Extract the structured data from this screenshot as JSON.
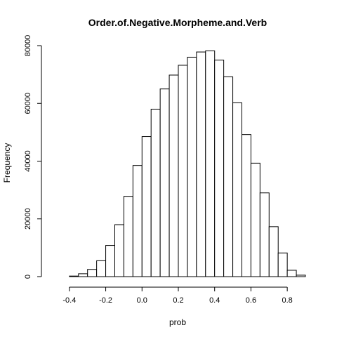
{
  "chart_data": {
    "type": "bar",
    "title": "Order.of.Negative.Morpheme.and.Verb",
    "xlabel": "prob",
    "ylabel": "Frequency",
    "bin_width": 0.05,
    "bin_start": -0.45,
    "values": [
      0,
      200,
      1000,
      2500,
      5500,
      10800,
      18000,
      27800,
      38500,
      48500,
      58000,
      65000,
      69800,
      73200,
      76000,
      77800,
      78200,
      75000,
      69200,
      60200,
      49200,
      39300,
      29000,
      17300,
      8200,
      2200,
      500
    ],
    "xlim": [
      -0.5,
      0.9
    ],
    "ylim": [
      0,
      80000
    ],
    "xticks": [
      -0.4,
      -0.2,
      0.0,
      0.2,
      0.4,
      0.6,
      0.8
    ],
    "xtick_labels": [
      "-0.4",
      "-0.2",
      "0.0",
      "0.2",
      "0.4",
      "0.6",
      "0.8"
    ],
    "yticks": [
      0,
      20000,
      40000,
      60000,
      80000
    ],
    "ytick_labels": [
      "0",
      "20000",
      "40000",
      "60000",
      "80000"
    ],
    "grid": false,
    "bar_fill": "#ffffff",
    "bar_stroke": "#000000"
  }
}
